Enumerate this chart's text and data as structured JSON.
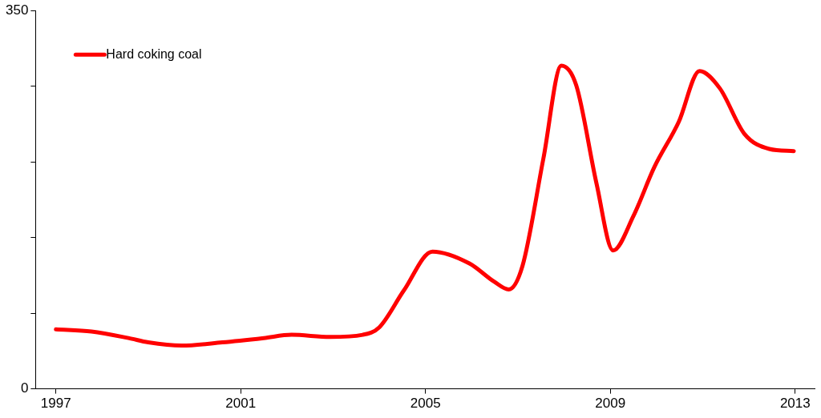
{
  "chart_data": {
    "type": "line",
    "legend": "top left",
    "marker": "none",
    "line_style": "solid",
    "grid": false,
    "xlim": [
      1996.56,
      2013.42
    ],
    "xticks": [
      1997,
      2001,
      2005,
      2009,
      2013
    ],
    "ylim": [
      0,
      350
    ],
    "yticks": [
      0,
      {
        "value": 70,
        "label": null
      },
      {
        "value": 140,
        "label": null
      },
      {
        "value": 210,
        "label": null
      },
      {
        "value": 280,
        "label": null
      },
      350
    ],
    "series": [
      {
        "name": "Hard coking coal",
        "color": "#ff0000",
        "x": [
          1997.0,
          1997.77,
          1998.57,
          1999.0,
          1999.72,
          2000.6,
          2001.5,
          2002.1,
          2002.93,
          2003.64,
          2004.0,
          2004.53,
          2005.15,
          2005.95,
          2006.49,
          2006.8,
          2007.1,
          2007.55,
          2007.94,
          2008.26,
          2008.7,
          2009.06,
          2009.5,
          2009.95,
          2010.48,
          2010.93,
          2011.37,
          2011.9,
          2012.44,
          2012.97
        ],
        "values": [
          55,
          53,
          47,
          43,
          40,
          43,
          47,
          50,
          48,
          50,
          57,
          91,
          127,
          116,
          99,
          92,
          114,
          213,
          299,
          281,
          190,
          128,
          160,
          205,
          247,
          294,
          278,
          236,
          222,
          220
        ]
      }
    ]
  }
}
